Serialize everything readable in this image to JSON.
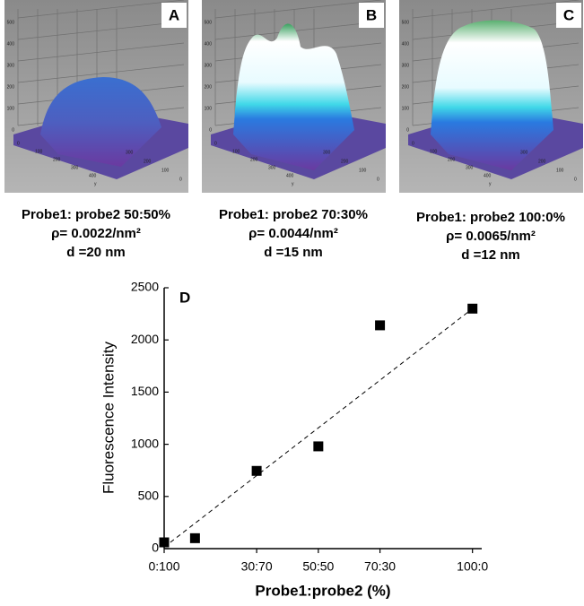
{
  "panels": [
    {
      "label": "A",
      "caption": [
        "Probe1: probe2 50:50%",
        "ρ= 0.0022/nm²",
        "d =20 nm"
      ],
      "z_ticks": [
        "0",
        "100",
        "200",
        "300",
        "400",
        "500"
      ],
      "x_ticks": [
        "0",
        "100",
        "200",
        "300",
        "400"
      ],
      "y_ticks": [
        "0",
        "100",
        "200",
        "300"
      ],
      "y_axis": "y"
    },
    {
      "label": "B",
      "caption": [
        "Probe1: probe2 70:30%",
        "ρ= 0.0044/nm²",
        "d =15 nm"
      ],
      "z_ticks": [
        "0",
        "100",
        "200",
        "300",
        "400",
        "500"
      ],
      "x_ticks": [
        "0",
        "100",
        "200",
        "300",
        "400"
      ],
      "y_ticks": [
        "0",
        "100",
        "200",
        "300"
      ],
      "y_axis": "y"
    },
    {
      "label": "C",
      "caption": [
        "Probe1: probe2 100:0%",
        "ρ= 0.0065/nm²",
        "d =12 nm"
      ],
      "z_ticks": [
        "0",
        "100",
        "200",
        "300",
        "400",
        "500"
      ],
      "x_ticks": [
        "0",
        "100",
        "200",
        "300",
        "400"
      ],
      "y_ticks": [
        "0",
        "100",
        "200",
        "300"
      ],
      "y_axis": "y"
    }
  ],
  "chart_data": {
    "type": "scatter",
    "label": "D",
    "xlabel": "Probe1:probe2 (%)",
    "ylabel": "Fluorescence Intensity",
    "x": [
      0,
      10,
      30,
      50,
      70,
      100
    ],
    "values": [
      60,
      100,
      745,
      980,
      2140,
      2300
    ],
    "color": "#000000",
    "xlim": [
      0,
      103
    ],
    "ylim": [
      0,
      2500
    ],
    "xticks": [
      {
        "value": 0,
        "label": "0:100"
      },
      {
        "value": 30,
        "label": "30:70"
      },
      {
        "value": 50,
        "label": "50:50"
      },
      {
        "value": 70,
        "label": "70:30"
      },
      {
        "value": 100,
        "label": "100:0"
      }
    ],
    "yticks": [
      0,
      500,
      1000,
      1500,
      2000,
      2500
    ],
    "trend": {
      "x": [
        2,
        100
      ],
      "values": [
        60,
        2300
      ]
    }
  }
}
